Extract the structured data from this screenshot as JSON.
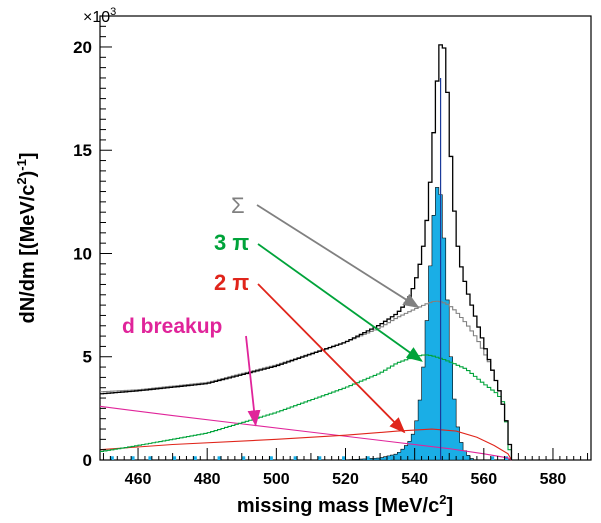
{
  "chart_data": {
    "type": "line",
    "title": "",
    "xlabel": "missing mass [MeV/c²]",
    "xlabel_parts": {
      "base": "missing mass [MeV/c",
      "sup": "2",
      "end": "]"
    },
    "ylabel": "dN/dm [(MeV/c²)⁻¹]",
    "ylabel_parts": {
      "base": "dN/dm [(MeV/c",
      "sup1": "2",
      "mid": ")",
      "sup2": "-1",
      "end": "]"
    },
    "y_multiplier": "×10³",
    "y_multiplier_parts": {
      "base": "×10",
      "sup": "3"
    },
    "xlim": [
      449,
      591
    ],
    "ylim": [
      0,
      21500
    ],
    "x_ticks": [
      460,
      480,
      500,
      520,
      540,
      560,
      580
    ],
    "y_ticks": [
      0,
      5,
      10,
      15,
      20
    ],
    "colors": {
      "sum": "#000000",
      "sigma": "#808080",
      "three_pi": "#00a33a",
      "two_pi": "#e0251b",
      "d_breakup": "#e0249a",
      "data": "#1aaee6",
      "marker": "#1a3a9a"
    },
    "series": [
      {
        "key": "sum",
        "type": "step",
        "x": [
          449,
          460,
          480,
          500,
          520,
          530,
          535,
          538,
          540,
          542,
          543,
          544,
          545,
          546,
          547,
          548,
          549,
          550,
          551,
          552,
          553,
          555,
          558,
          562,
          565,
          567,
          568
        ],
        "y": [
          3200,
          3350,
          3700,
          4550,
          5700,
          6550,
          7100,
          7700,
          8500,
          9800,
          10900,
          12300,
          14600,
          17100,
          19600,
          20600,
          19300,
          16300,
          13100,
          11000,
          9700,
          8300,
          6700,
          4600,
          3100,
          1500,
          0
        ]
      },
      {
        "key": "sigma",
        "type": "step",
        "x": [
          449,
          460,
          480,
          500,
          520,
          530,
          535,
          540,
          544,
          546,
          548,
          550,
          552,
          555,
          558,
          562,
          565,
          567,
          568
        ],
        "y": [
          3300,
          3400,
          3750,
          4600,
          5700,
          6400,
          6900,
          7300,
          7600,
          7700,
          7650,
          7500,
          7200,
          6600,
          5900,
          4600,
          3100,
          1500,
          0
        ]
      },
      {
        "key": "three_pi",
        "type": "step",
        "x": [
          449,
          460,
          480,
          500,
          510,
          520,
          530,
          535,
          540,
          543,
          545,
          548,
          551,
          555,
          560,
          564,
          566,
          567,
          568
        ],
        "y": [
          400,
          700,
          1300,
          2300,
          2900,
          3500,
          4200,
          4700,
          5000,
          5100,
          5050,
          4900,
          4700,
          4400,
          3700,
          3200,
          2700,
          1000,
          0
        ]
      },
      {
        "key": "two_pi",
        "type": "line",
        "x": [
          449,
          470,
          500,
          520,
          535,
          545,
          552,
          558,
          563,
          567,
          568
        ],
        "y": [
          500,
          750,
          1000,
          1200,
          1400,
          1500,
          1400,
          1100,
          700,
          300,
          0
        ]
      },
      {
        "key": "d_breakup",
        "type": "line",
        "x": [
          449,
          470,
          490,
          510,
          530,
          550,
          560,
          567,
          568
        ],
        "y": [
          2600,
          2150,
          1750,
          1350,
          950,
          550,
          300,
          100,
          0
        ]
      },
      {
        "key": "data",
        "type": "filled_histogram",
        "x": [
          449,
          460,
          480,
          500,
          520,
          530,
          535,
          537,
          539,
          540,
          541,
          542,
          543,
          544,
          545,
          546,
          547,
          548,
          549,
          550,
          551,
          552,
          553,
          554,
          555,
          557,
          560
        ],
        "y": [
          0,
          0,
          0,
          0,
          0,
          100,
          300,
          600,
          1000,
          1500,
          2300,
          3500,
          5500,
          8000,
          10800,
          12900,
          13500,
          12200,
          9300,
          6200,
          3800,
          2100,
          1100,
          600,
          300,
          0,
          0
        ]
      }
    ],
    "marker_x": 547.5,
    "annotations": [
      {
        "key": "sigma",
        "text": "Σ",
        "x_text": 0,
        "arrow_to": [
          541,
          7400
        ]
      },
      {
        "key": "three_pi",
        "text": "3 π",
        "x_text": 0,
        "arrow_to": [
          542,
          4800
        ]
      },
      {
        "key": "two_pi",
        "text": "2 π",
        "x_text": 0,
        "arrow_to": [
          537,
          1350
        ]
      },
      {
        "key": "d_breakup",
        "text": "d breakup",
        "x_text": 0,
        "arrow_to": [
          494,
          1700
        ]
      }
    ]
  }
}
